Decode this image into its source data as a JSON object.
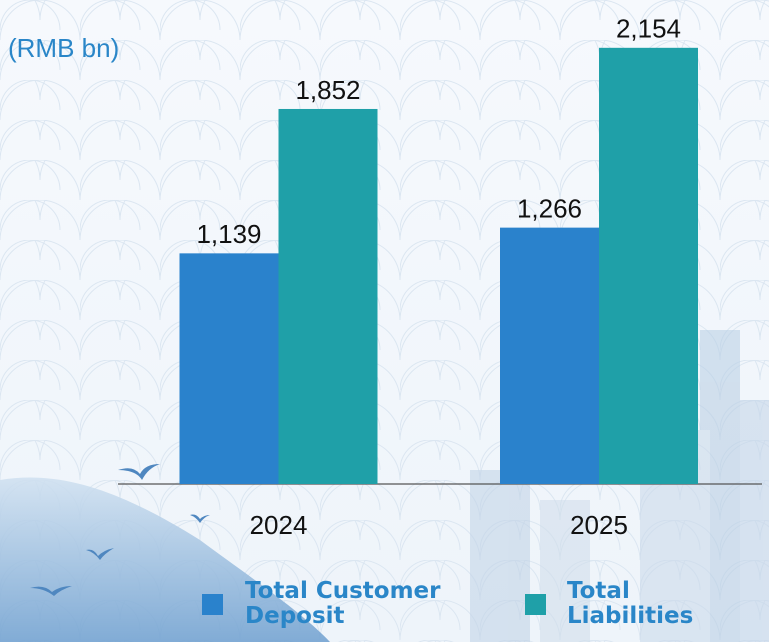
{
  "chart_data": {
    "type": "bar",
    "subtitle": "(RMB bn)",
    "categories": [
      "2024",
      "2025"
    ],
    "series": [
      {
        "name": "Total Customer Deposit",
        "color": "#2a82cc",
        "values": [
          1139,
          1266
        ],
        "value_labels": [
          "1,139",
          "1,266"
        ]
      },
      {
        "name": "Total Liabilities",
        "color": "#1fa0a8",
        "values": [
          1852,
          2154
        ],
        "value_labels": [
          "1,852",
          "2,154"
        ]
      }
    ],
    "ylim": [
      0,
      2200
    ]
  }
}
